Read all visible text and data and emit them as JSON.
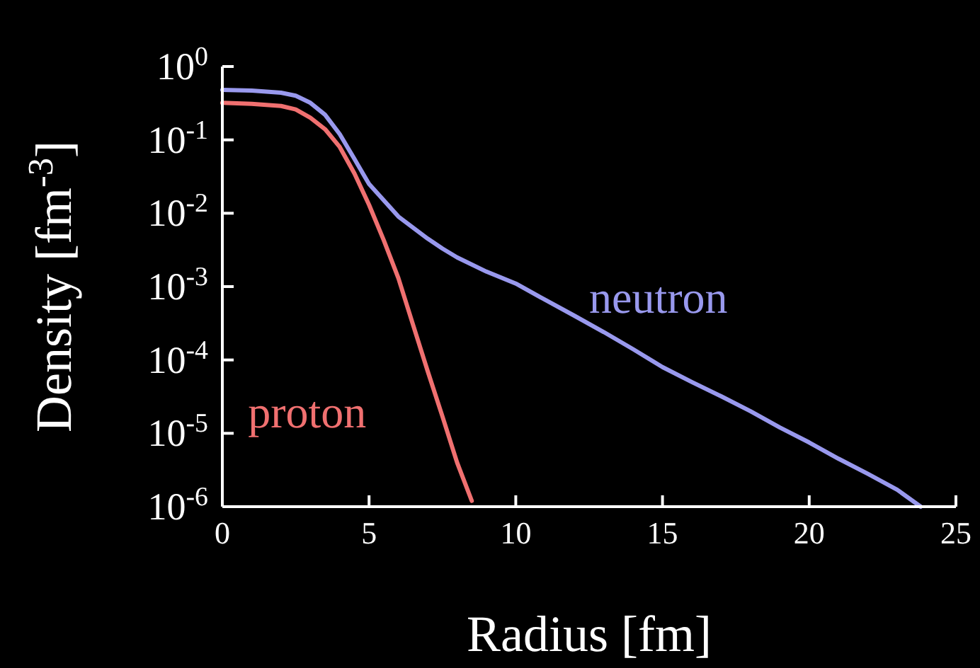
{
  "chart_data": {
    "type": "line",
    "xlabel": "Radius [fm]",
    "ylabel": "Density [fm$^{-3}$]",
    "log": "y",
    "grid": false,
    "marker": "none",
    "line_style": "solid",
    "xlim": [
      0,
      25
    ],
    "xticks": [
      0,
      5,
      10,
      15,
      20,
      25
    ],
    "ylim": [
      1e-06,
      1
    ],
    "yticks": [
      {
        "value": 1,
        "label": "10$^{0}$"
      },
      {
        "value": 0.1,
        "label": "10$^{-1}$"
      },
      {
        "value": 0.01,
        "label": "10$^{-2}$"
      },
      {
        "value": 0.001,
        "label": "10$^{-3}$"
      },
      {
        "value": 0.0001,
        "label": "10$^{-4}$"
      },
      {
        "value": 1e-05,
        "label": "10$^{-5}$"
      },
      {
        "value": 1e-06,
        "label": "10$^{-6}$"
      }
    ],
    "series": [
      {
        "name": "proton",
        "color": "#f07070",
        "x": [
          0,
          1,
          2,
          2.5,
          3,
          3.5,
          4,
          4.5,
          5,
          5.5,
          6,
          6.5,
          7,
          7.5,
          8,
          8.5
        ],
        "values": [
          0.32,
          0.31,
          0.29,
          0.26,
          0.2,
          0.14,
          0.08,
          0.035,
          0.013,
          0.0043,
          0.0013,
          0.0003,
          7e-05,
          1.7e-05,
          4e-06,
          1.2e-06
        ]
      },
      {
        "name": "neutron",
        "color": "#9999ee",
        "x": [
          0,
          1,
          2,
          2.5,
          3,
          3.5,
          4,
          4.5,
          5,
          6,
          7,
          7.5,
          8,
          9,
          10,
          11,
          12,
          13,
          14,
          15,
          16,
          17,
          18,
          19,
          20,
          21,
          22,
          23,
          23.8
        ],
        "values": [
          0.48,
          0.47,
          0.44,
          0.4,
          0.32,
          0.22,
          0.12,
          0.055,
          0.025,
          0.009,
          0.0045,
          0.0033,
          0.0025,
          0.0016,
          0.0011,
          0.00066,
          0.0004,
          0.00024,
          0.00014,
          8e-05,
          5e-05,
          3.2e-05,
          2e-05,
          1.2e-05,
          7.5e-06,
          4.5e-06,
          2.8e-06,
          1.7e-06,
          1e-06
        ]
      }
    ]
  }
}
